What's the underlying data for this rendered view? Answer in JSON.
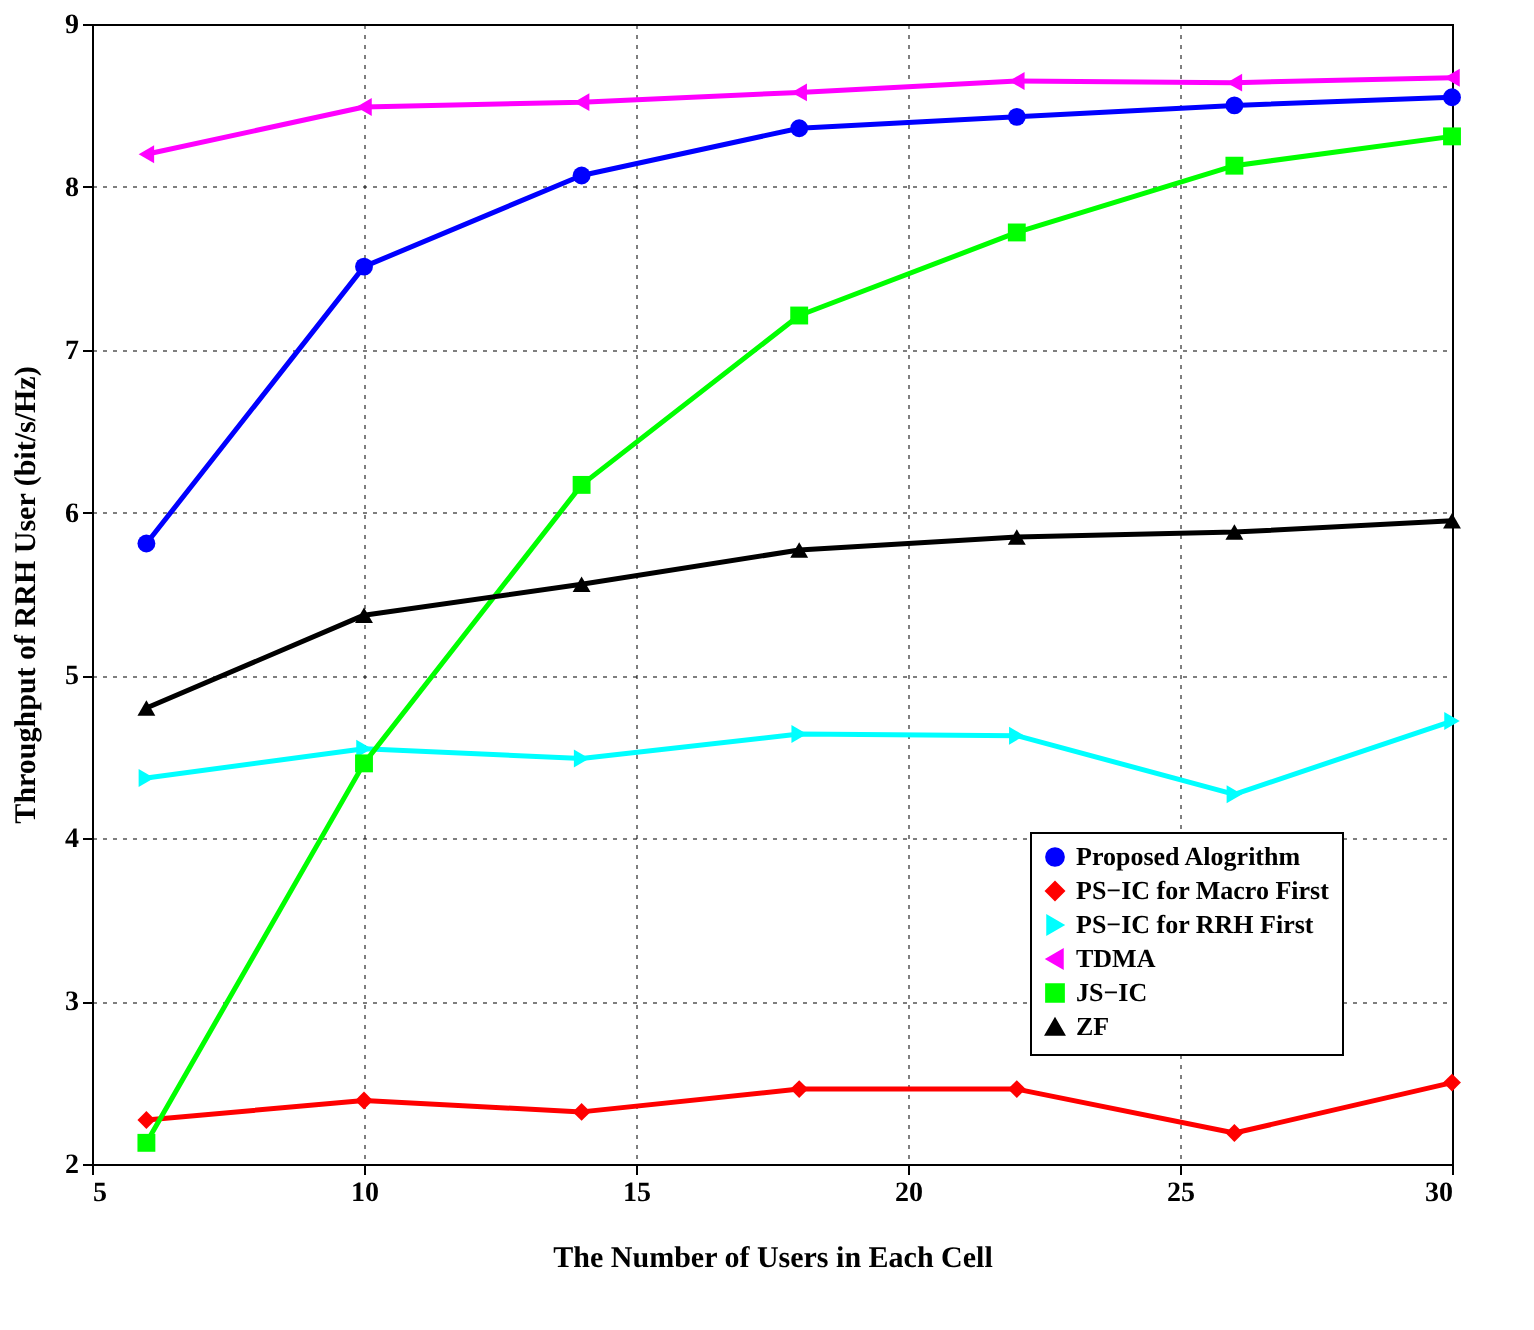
{
  "chart_data": {
    "type": "line",
    "xlabel": "The Number of Users in Each Cell",
    "ylabel": "Throughput of RRH User (bit/s/Hz)",
    "x": [
      6,
      10,
      14,
      18,
      22,
      26,
      30
    ],
    "series": [
      {
        "name": "Proposed Alogrithm",
        "color": "#0000ff",
        "marker": "circle",
        "values": [
          5.81,
          7.51,
          8.07,
          8.36,
          8.43,
          8.5,
          8.55
        ]
      },
      {
        "name": "PS−IC for Macro First",
        "color": "#ff0000",
        "marker": "diamond",
        "values": [
          2.27,
          2.39,
          2.32,
          2.46,
          2.46,
          2.19,
          2.5
        ]
      },
      {
        "name": "PS−IC for RRH First",
        "color": "#00ffff",
        "marker": "triangle-right",
        "values": [
          4.37,
          4.55,
          4.49,
          4.64,
          4.63,
          4.27,
          4.72
        ]
      },
      {
        "name": "TDMA",
        "color": "#ff00ff",
        "marker": "triangle-left",
        "values": [
          8.2,
          8.49,
          8.52,
          8.58,
          8.65,
          8.64,
          8.67
        ]
      },
      {
        "name": "JS−IC",
        "color": "#00ff00",
        "marker": "square",
        "values": [
          2.13,
          4.46,
          6.17,
          7.21,
          7.72,
          8.13,
          8.31
        ]
      },
      {
        "name": "ZF",
        "color": "#000000",
        "marker": "triangle-up",
        "values": [
          4.8,
          5.37,
          5.56,
          5.77,
          5.85,
          5.88,
          5.95
        ]
      }
    ],
    "xlim": [
      5,
      30
    ],
    "xticks": [
      5,
      10,
      15,
      20,
      25,
      30
    ],
    "ylim": [
      2,
      9
    ],
    "yticks": [
      2,
      3,
      4,
      5,
      6,
      7,
      8,
      9
    ],
    "grid": true,
    "legend": "bottom right",
    "line_style": "solid"
  }
}
